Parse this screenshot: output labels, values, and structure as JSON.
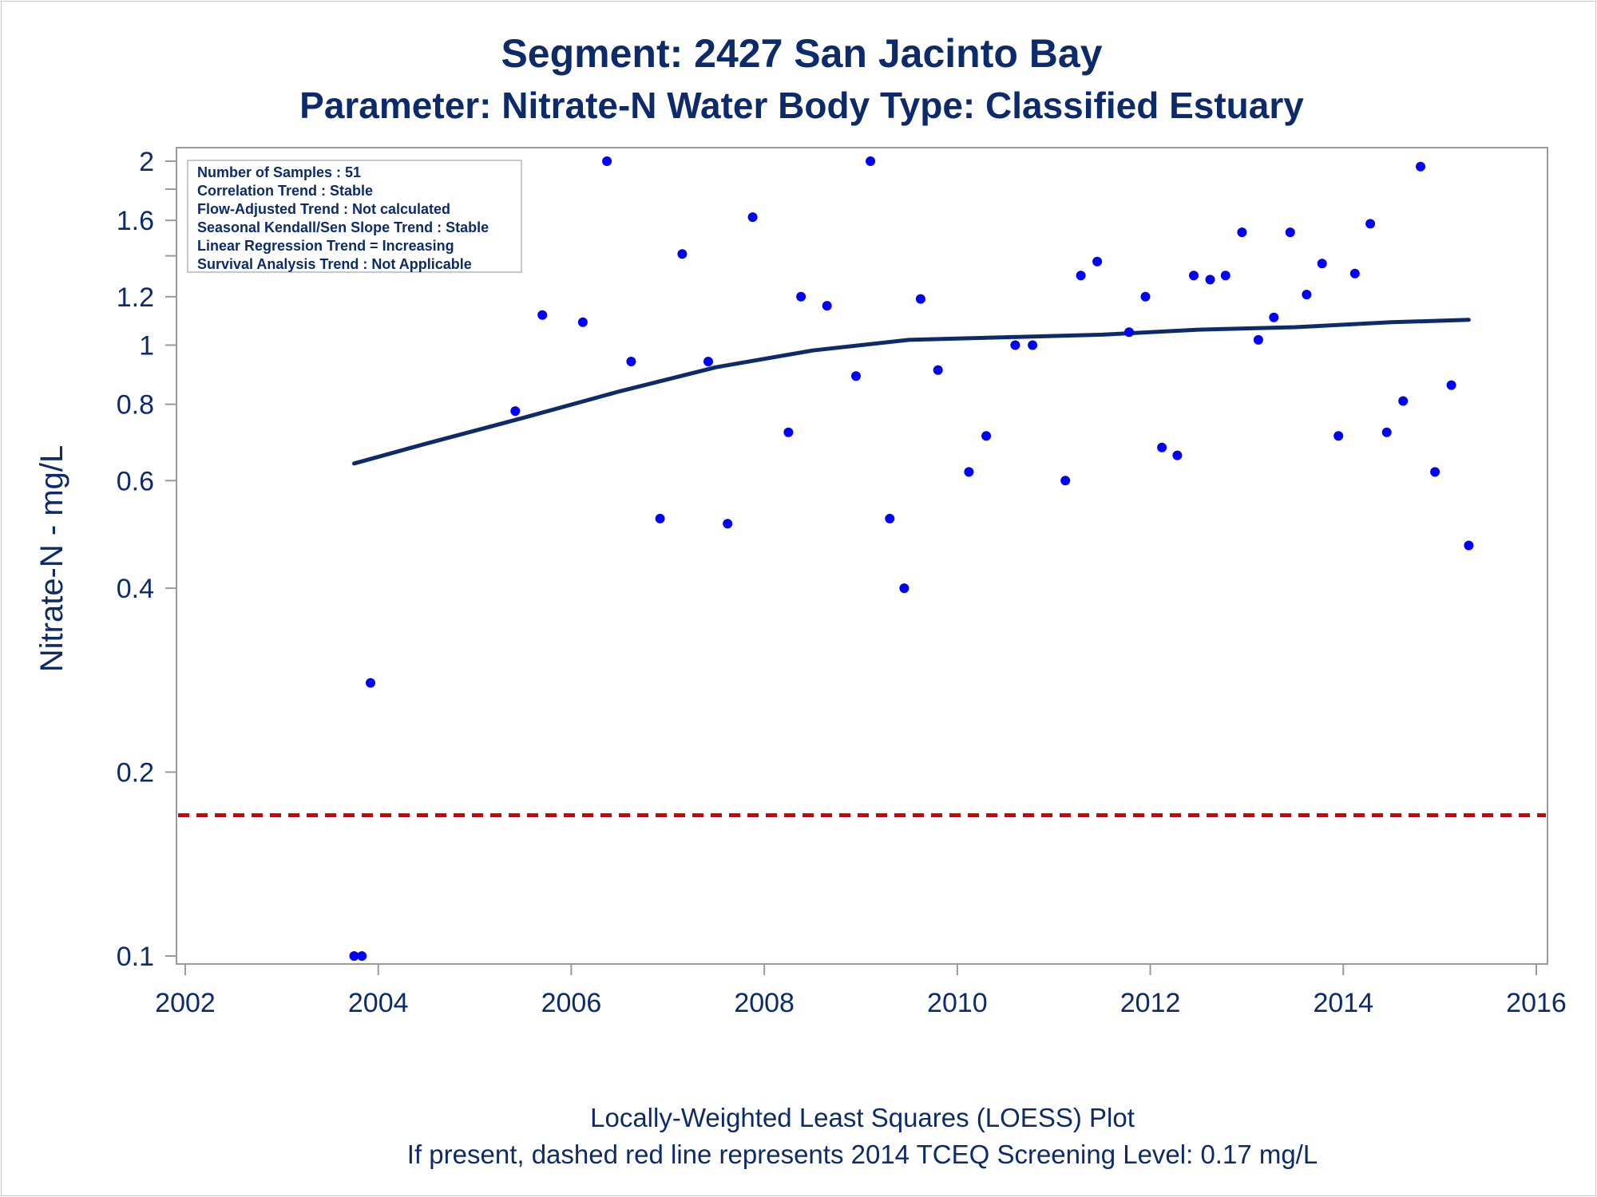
{
  "chart_data": {
    "type": "scatter",
    "title": "Segment: 2427  San Jacinto Bay",
    "subtitle": "Parameter: Nitrate-N   Water Body Type: Classified Estuary",
    "xlabel": "",
    "ylabel": "Nitrate-N - mg/L",
    "y_scale": "log",
    "xlim": [
      2002,
      2016
    ],
    "ylim": [
      0.1,
      2
    ],
    "x_ticks": [
      2002,
      2004,
      2006,
      2008,
      2010,
      2012,
      2014,
      2016
    ],
    "x_tick_labels": [
      "2002",
      "2004",
      "2006",
      "2008",
      "2010",
      "2012",
      "2014",
      "2016"
    ],
    "y_ticks": [
      0.1,
      0.2,
      0.4,
      0.6,
      0.8,
      1,
      1.2,
      1.6,
      2
    ],
    "y_tick_labels": [
      "0.1",
      "0.2",
      "0.4",
      "0.6",
      "0.8",
      "1",
      "1.2",
      "1.6",
      "2"
    ],
    "y_minor_ticks": [
      1.4,
      1.8
    ],
    "grid": false,
    "info_box": {
      "position": "top-left",
      "lines": [
        "Number of Samples : 51",
        "Correlation Trend : Stable",
        "Flow-Adjusted Trend : Not calculated",
        "Seasonal Kendall/Sen Slope Trend : Stable",
        "Linear Regression Trend = Increasing",
        "Survival Analysis Trend : Not Applicable"
      ]
    },
    "points": [
      [
        2003.75,
        0.1
      ],
      [
        2003.83,
        0.1
      ],
      [
        2003.92,
        0.28
      ],
      [
        2005.42,
        0.78
      ],
      [
        2005.7,
        1.12
      ],
      [
        2006.12,
        1.09
      ],
      [
        2006.37,
        2.0
      ],
      [
        2006.62,
        0.94
      ],
      [
        2006.92,
        0.52
      ],
      [
        2007.15,
        1.41
      ],
      [
        2007.42,
        0.94
      ],
      [
        2007.62,
        0.51
      ],
      [
        2007.88,
        1.62
      ],
      [
        2008.25,
        0.72
      ],
      [
        2008.38,
        1.2
      ],
      [
        2008.65,
        1.16
      ],
      [
        2008.95,
        0.89
      ],
      [
        2009.1,
        2.0
      ],
      [
        2009.3,
        0.52
      ],
      [
        2009.45,
        0.4
      ],
      [
        2009.62,
        1.19
      ],
      [
        2009.8,
        0.91
      ],
      [
        2010.12,
        0.62
      ],
      [
        2010.3,
        0.71
      ],
      [
        2010.6,
        1.0
      ],
      [
        2010.78,
        1.0
      ],
      [
        2011.12,
        0.6
      ],
      [
        2011.28,
        1.3
      ],
      [
        2011.45,
        1.37
      ],
      [
        2011.78,
        1.05
      ],
      [
        2011.95,
        1.2
      ],
      [
        2012.12,
        0.68
      ],
      [
        2012.28,
        0.66
      ],
      [
        2012.45,
        1.3
      ],
      [
        2012.62,
        1.28
      ],
      [
        2012.78,
        1.3
      ],
      [
        2012.95,
        1.53
      ],
      [
        2013.12,
        1.02
      ],
      [
        2013.28,
        1.11
      ],
      [
        2013.45,
        1.53
      ],
      [
        2013.62,
        1.21
      ],
      [
        2013.78,
        1.36
      ],
      [
        2013.95,
        0.71
      ],
      [
        2014.12,
        1.31
      ],
      [
        2014.28,
        1.58
      ],
      [
        2014.45,
        0.72
      ],
      [
        2014.62,
        0.81
      ],
      [
        2014.8,
        1.96
      ],
      [
        2014.95,
        0.62
      ],
      [
        2015.12,
        0.86
      ],
      [
        2015.3,
        0.47
      ]
    ],
    "loess_curve": {
      "name": "Locally-Weighted Least Squares (LOESS) Plot",
      "x": [
        2003.75,
        2004.5,
        2005.5,
        2006.5,
        2007.5,
        2008.5,
        2009.5,
        2010.5,
        2011.5,
        2012.5,
        2013.5,
        2014.5,
        2015.3
      ],
      "y": [
        0.64,
        0.69,
        0.76,
        0.84,
        0.92,
        0.98,
        1.02,
        1.03,
        1.04,
        1.06,
        1.07,
        1.09,
        1.1
      ]
    },
    "reference_line": {
      "value": 0.17,
      "style": "dashed"
    },
    "colors": {
      "points": "#0000ff",
      "loess": "#0d2b6b",
      "reference": "#d00000",
      "text": "#0d2b6b",
      "axis": "#9a9a9a"
    },
    "footnotes": [
      "Locally-Weighted Least Squares (LOESS) Plot",
      "If present, dashed red line represents 2014 TCEQ Screening Level: 0.17 mg/L"
    ]
  }
}
